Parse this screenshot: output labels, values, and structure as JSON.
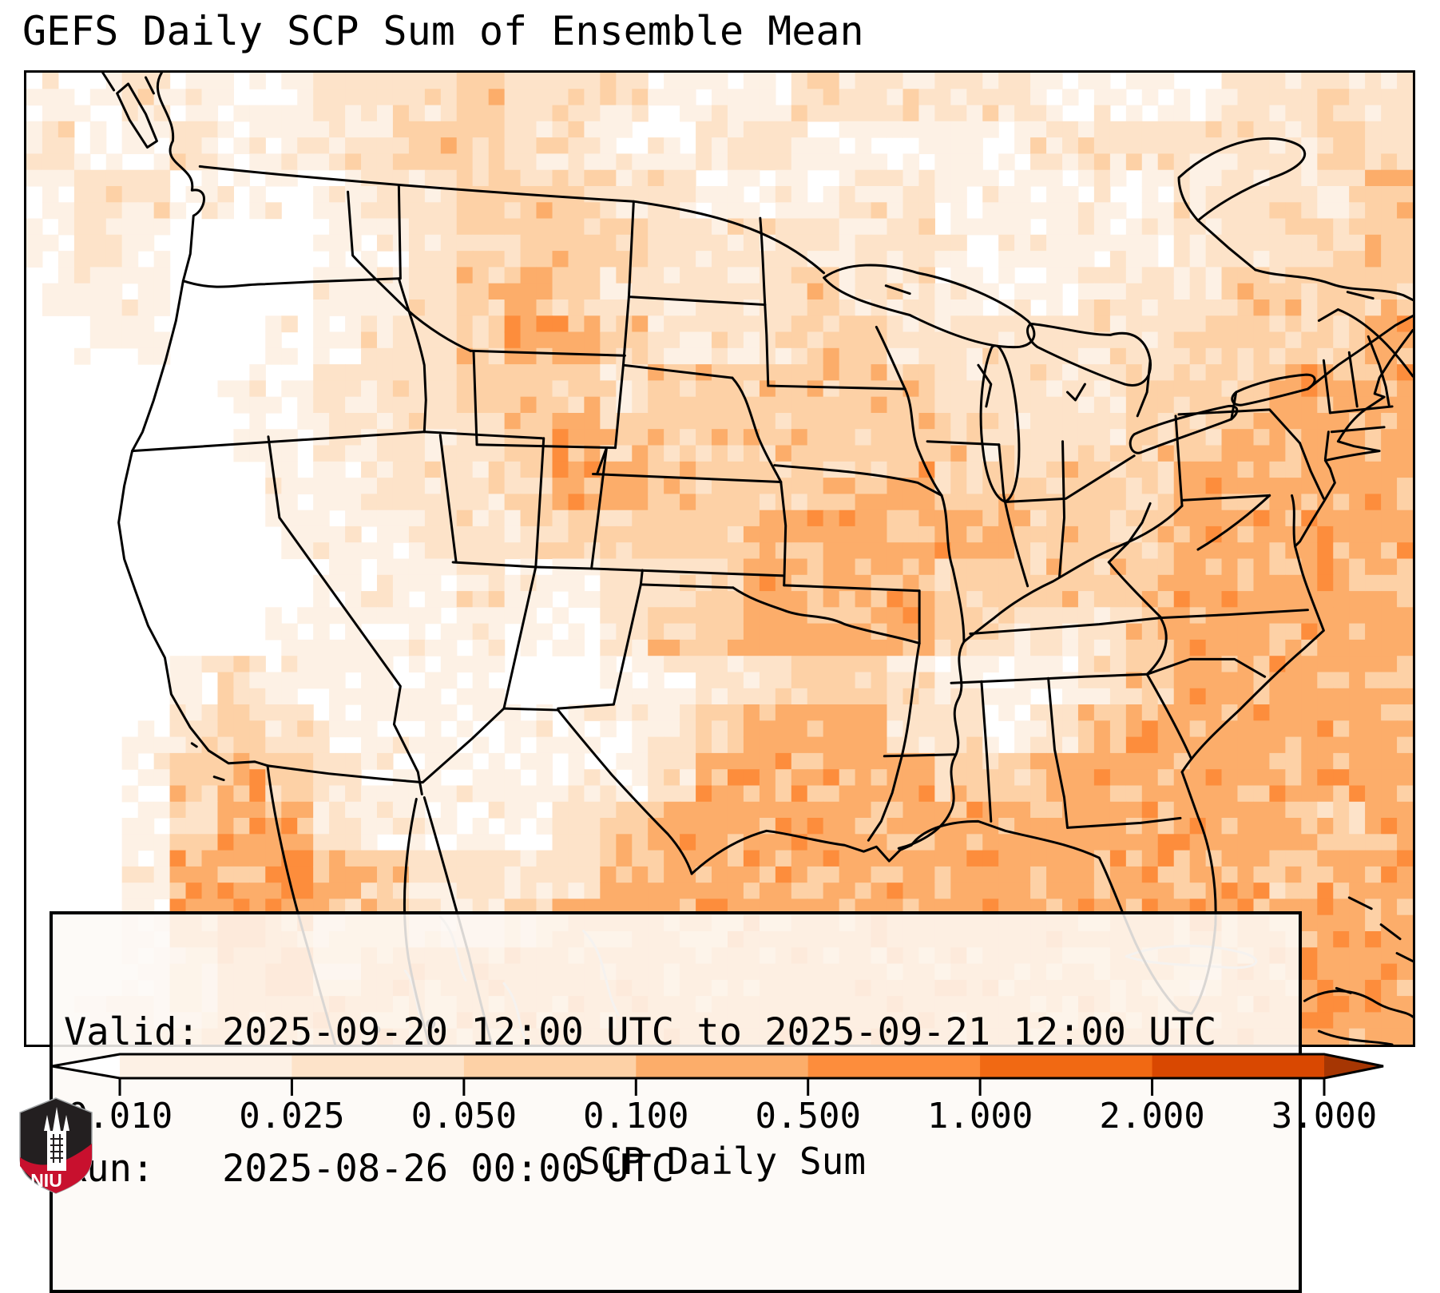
{
  "title": "GEFS Daily SCP Sum of Ensemble Mean",
  "info_box": {
    "line1": "Valid: 2025-09-20 12:00 UTC to 2025-09-21 12:00 UTC",
    "line2": "Run:   2025-08-26 00:00 UTC"
  },
  "colorbar": {
    "label": "SCP Daily Sum",
    "tick_labels": [
      "0.010",
      "0.025",
      "0.050",
      "0.100",
      "0.500",
      "1.000",
      "2.000",
      "3.000"
    ]
  },
  "logo": {
    "text": "NIU",
    "shield_black": "#231f20",
    "shield_red": "#c8102e"
  },
  "chart_data": {
    "type": "heatmap",
    "title": "GEFS Daily SCP Sum of Ensemble Mean",
    "variable": "SCP Daily Sum",
    "valid": "2025-09-20 12:00 UTC to 2025-09-21 12:00 UTC",
    "run": "2025-08-26 00:00 UTC",
    "region": "Continental United States, southern Canada, northern Mexico, Gulf of Mexico, western Atlantic",
    "colorbar_boundaries": [
      0.01,
      0.025,
      0.05,
      0.1,
      0.5,
      1.0,
      2.0,
      3.0
    ],
    "colorbar_extend": "both",
    "under_color": "#ffffff",
    "over_color": "#a63603",
    "palette": [
      "#ffffff",
      "#fdf1e5",
      "#fde3c9",
      "#fdd1a6",
      "#fcad6a",
      "#fd8d3c",
      "#f16913",
      "#d94801",
      "#a63603"
    ],
    "bin_value_ranges": [
      "< 0.010",
      "0.010-0.025",
      "0.025-0.050",
      "0.050-0.100",
      "0.100-0.500",
      "0.500-1.000",
      "1.000-2.000",
      "2.000-3.000",
      "> 3.000"
    ],
    "grid_note": "Coarse 29x20 grid of SCP bin indices (0-5 map to bin_value_ranges), west-to-east per row, north-to-south rows; rendered as pixelated ensemble-mean field.",
    "grid": [
      "11211122232221112222211112222",
      "21121122332211221111122222232",
      "12211112233322111221111122223",
      "12100011233332222221111122233",
      "11100011234322223221112223333",
      "01100112234432223322222233334",
      "00001122233323333332222333444",
      "00001122223433333333222334444",
      "00000112223443333343333344444",
      "00000111222333344444433344444",
      "00000011121122344443333344444",
      "00000111111123344443222344444",
      "00012111110011223321112344444",
      "00123211111112344422123444444",
      "00134321111112444443344444444",
      "00134421111234444444444444434",
      "00144543222244444444444444344",
      "00145433223444444444444444444",
      "00134534444444444444444434444",
      "01234444444444444444444444444"
    ]
  }
}
